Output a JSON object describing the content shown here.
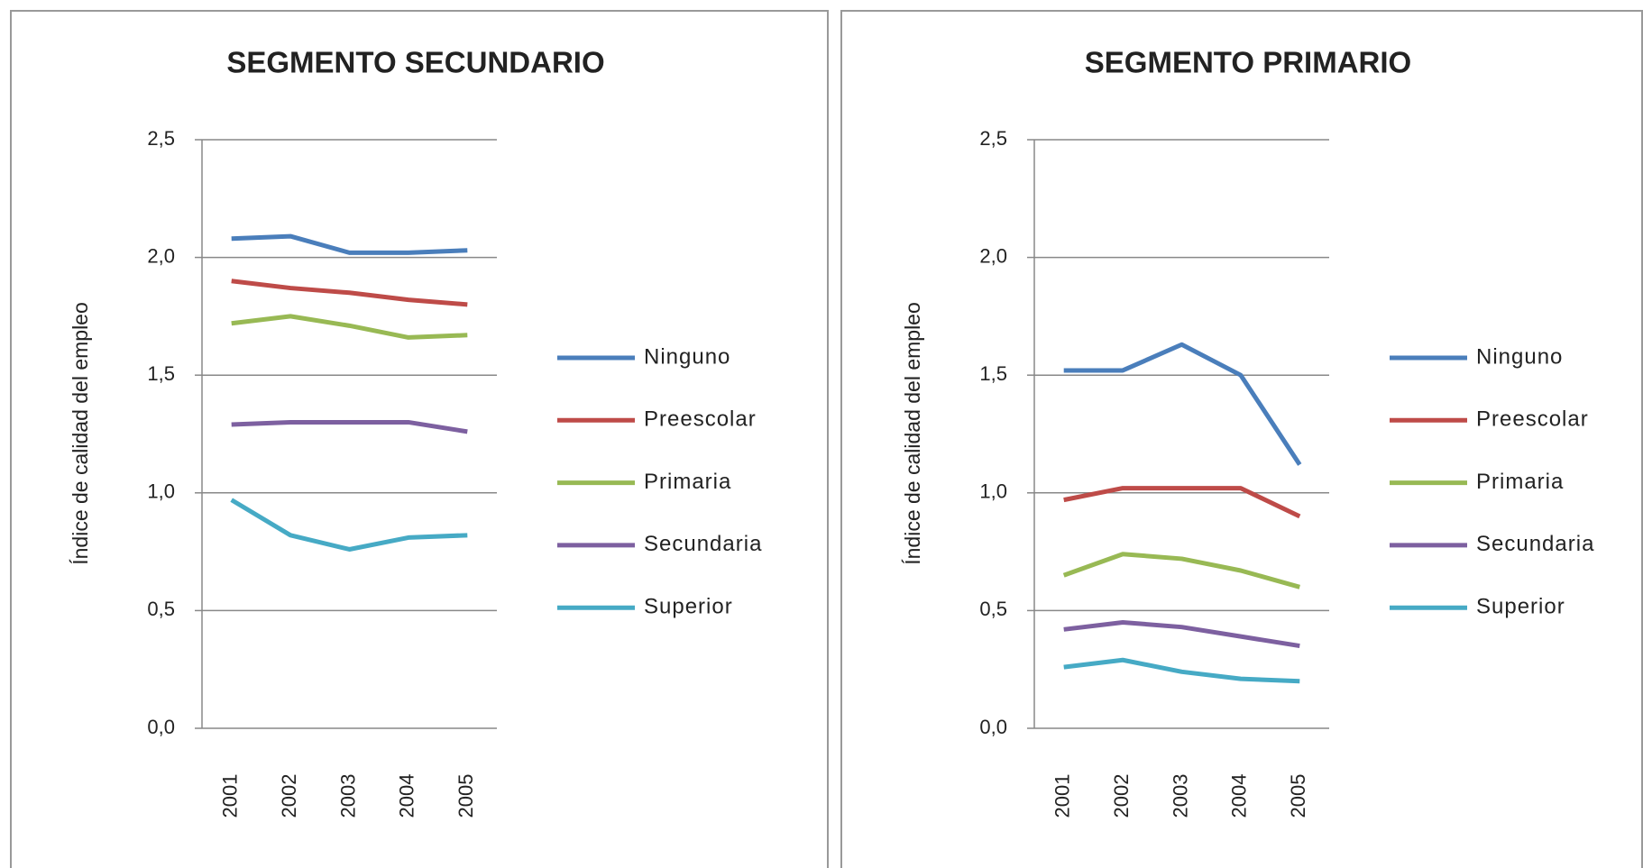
{
  "chart_data": [
    {
      "type": "line",
      "title": "SEGMENTO SECUNDARIO",
      "y_label": "Índice de calidad del empleo",
      "categories": [
        "2001",
        "2002",
        "2003",
        "2004",
        "2005"
      ],
      "ylim": [
        0,
        2.5
      ],
      "yticks": [
        {
          "value": 0,
          "label": "0,0"
        },
        {
          "value": 0.5,
          "label": "0,5"
        },
        {
          "value": 1,
          "label": "1,0"
        },
        {
          "value": 1.5,
          "label": "1,5"
        },
        {
          "value": 2,
          "label": "2,0"
        },
        {
          "value": 2.5,
          "label": "2,5"
        }
      ],
      "grid": true,
      "legend": "right",
      "series": [
        {
          "name": "Ninguno",
          "color": "#4a7ebb",
          "values": [
            2.08,
            2.09,
            2.02,
            2.02,
            2.03
          ]
        },
        {
          "name": "Preescolar",
          "color": "#be4b48",
          "values": [
            1.9,
            1.87,
            1.85,
            1.82,
            1.8
          ]
        },
        {
          "name": "Primaria",
          "color": "#98b954",
          "values": [
            1.72,
            1.75,
            1.71,
            1.66,
            1.67
          ]
        },
        {
          "name": "Secundaria",
          "color": "#7d60a0",
          "values": [
            1.29,
            1.3,
            1.3,
            1.3,
            1.26
          ]
        },
        {
          "name": "Superior",
          "color": "#46aac5",
          "values": [
            0.97,
            0.82,
            0.76,
            0.81,
            0.82
          ]
        }
      ]
    },
    {
      "type": "line",
      "title": "SEGMENTO PRIMARIO",
      "y_label": "Índice de calidad del empleo",
      "categories": [
        "2001",
        "2002",
        "2003",
        "2004",
        "2005"
      ],
      "ylim": [
        0,
        2.5
      ],
      "yticks": [
        {
          "value": 0,
          "label": "0,0"
        },
        {
          "value": 0.5,
          "label": "0,5"
        },
        {
          "value": 1,
          "label": "1,0"
        },
        {
          "value": 1.5,
          "label": "1,5"
        },
        {
          "value": 2,
          "label": "2,0"
        },
        {
          "value": 2.5,
          "label": "2,5"
        }
      ],
      "grid": true,
      "legend": "right",
      "series": [
        {
          "name": "Ninguno",
          "color": "#4a7ebb",
          "values": [
            1.52,
            1.52,
            1.63,
            1.5,
            1.12
          ]
        },
        {
          "name": "Preescolar",
          "color": "#be4b48",
          "values": [
            0.97,
            1.02,
            1.02,
            1.02,
            0.9
          ]
        },
        {
          "name": "Primaria",
          "color": "#98b954",
          "values": [
            0.65,
            0.74,
            0.72,
            0.67,
            0.6
          ]
        },
        {
          "name": "Secundaria",
          "color": "#7d60a0",
          "values": [
            0.42,
            0.45,
            0.43,
            0.39,
            0.35
          ]
        },
        {
          "name": "Superior",
          "color": "#46aac5",
          "values": [
            0.26,
            0.29,
            0.24,
            0.21,
            0.2
          ]
        }
      ]
    }
  ]
}
